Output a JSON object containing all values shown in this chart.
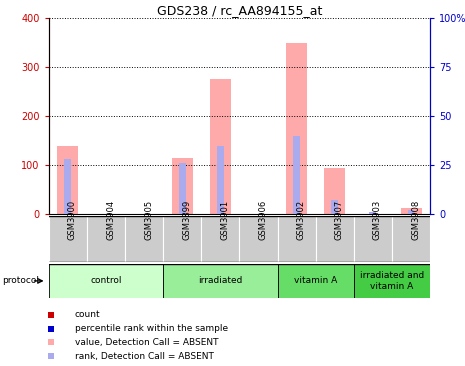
{
  "title": "GDS238 / rc_AA894155_at",
  "samples": [
    "GSM3900",
    "GSM3904",
    "GSM3905",
    "GSM3899",
    "GSM3901",
    "GSM3906",
    "GSM3902",
    "GSM3907",
    "GSM3903",
    "GSM3908"
  ],
  "pink_values": [
    140,
    0,
    0,
    115,
    275,
    0,
    350,
    95,
    0,
    12
  ],
  "blue_values": [
    28,
    0,
    0,
    26,
    35,
    0,
    40,
    7,
    1,
    2
  ],
  "protocols": [
    {
      "label": "control",
      "start": 0,
      "end": 3,
      "color": "#ccffcc"
    },
    {
      "label": "irradiated",
      "start": 3,
      "end": 6,
      "color": "#99ee99"
    },
    {
      "label": "vitamin A",
      "start": 6,
      "end": 8,
      "color": "#66dd66"
    },
    {
      "label": "irradiated and\nvitamin A",
      "start": 8,
      "end": 10,
      "color": "#44cc44"
    }
  ],
  "ylim_left": [
    0,
    400
  ],
  "ylim_right": [
    0,
    100
  ],
  "left_ticks": [
    0,
    100,
    200,
    300,
    400
  ],
  "right_ticks": [
    0,
    25,
    50,
    75,
    100
  ],
  "left_tick_labels": [
    "0",
    "100",
    "200",
    "300",
    "400"
  ],
  "right_tick_labels": [
    "0",
    "25",
    "50",
    "75",
    "100%"
  ],
  "left_color": "#cc0000",
  "right_color": "#0000cc",
  "pink_color": "#ffaaaa",
  "lightblue_color": "#aaaaee",
  "sample_bg": "#cccccc",
  "title_fontsize": 9,
  "tick_fontsize": 7,
  "label_fontsize": 6
}
